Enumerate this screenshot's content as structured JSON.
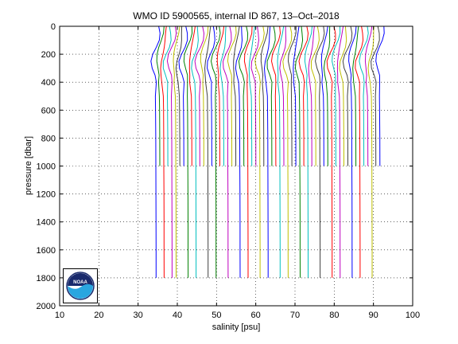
{
  "chart_data": {
    "type": "line",
    "title": "WMO ID 5900565, internal ID 867, 13–Oct–2018",
    "xlabel": "salinity [psu]",
    "ylabel": "pressure [dbar]",
    "xlim": [
      10,
      100
    ],
    "ylim": [
      0,
      2000
    ],
    "y_reversed": true,
    "grid": true,
    "x_ticks": [
      10,
      20,
      30,
      40,
      50,
      60,
      70,
      80,
      90,
      100
    ],
    "y_ticks": [
      0,
      200,
      400,
      600,
      800,
      1000,
      1200,
      1400,
      1600,
      1800,
      2000
    ],
    "series_colors": [
      "#0000ff",
      "#008000",
      "#ff0000",
      "#00bfbf",
      "#bf00bf",
      "#bfbf00",
      "#404040"
    ],
    "profile_count": 57,
    "profile_base_salinity_start": 34.9,
    "profile_offset_step": 1.02,
    "profile_max_pressure": [
      1950,
      1000,
      1980,
      1000,
      1980,
      1960,
      1000,
      1000,
      1850,
      1000,
      1990,
      1000,
      1000,
      1980,
      1000,
      1960,
      1000,
      1000,
      1990,
      1000,
      1000,
      1950,
      1000,
      1980,
      1000,
      1000,
      1990,
      1000,
      1850,
      1000,
      1000,
      1980,
      1000,
      1960,
      1000,
      1000,
      1990,
      1000,
      1950,
      1000,
      1000,
      1980,
      1000,
      1000,
      1990,
      1000,
      1960,
      1000,
      1000,
      1980,
      1000,
      1950,
      1000,
      1000,
      1990,
      1000,
      1000
    ],
    "profile_shape": {
      "pressure": [
        0,
        50,
        100,
        150,
        200,
        250,
        300,
        350,
        400,
        500,
        600,
        800,
        1000,
        1200,
        1400,
        1600,
        1800,
        2000
      ],
      "salinity_anomaly": [
        0.35,
        0.4,
        0.2,
        -0.3,
        -0.9,
        -1.3,
        -1.2,
        -0.8,
        -0.6,
        -0.5,
        -0.45,
        -0.4,
        -0.38,
        -0.35,
        -0.33,
        -0.32,
        -0.31,
        -0.3
      ]
    }
  },
  "logo": {
    "text": "NOAA",
    "colors": {
      "navy": "#1a2a6c",
      "sky": "#2aa6e0",
      "white": "#ffffff"
    }
  }
}
